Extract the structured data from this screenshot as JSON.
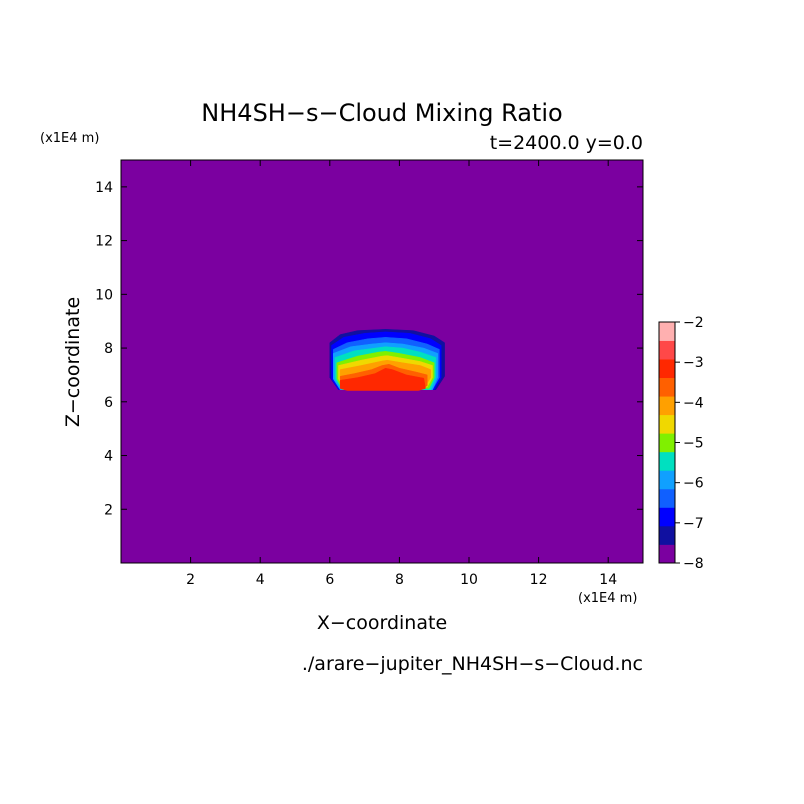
{
  "chart_data": {
    "type": "heatmap",
    "title": "NH4SH−s−Cloud Mixing Ratio",
    "subtitle": "t=2400.0 y=0.0",
    "xlabel": "X−coordinate",
    "ylabel": "Z−coordinate",
    "x_unit": "(x1E4 m)",
    "y_unit": "(x1E4 m)",
    "footer": "./arare−jupiter_NH4SH−s−Cloud.nc",
    "xlim": [
      0,
      15
    ],
    "ylim": [
      0,
      15
    ],
    "x_ticks": [
      2,
      4,
      6,
      8,
      10,
      12,
      14
    ],
    "y_ticks": [
      2,
      4,
      6,
      8,
      10,
      12,
      14
    ],
    "colorbar": {
      "min": -8,
      "max": -2,
      "ticks": [
        -2,
        -3,
        -4,
        -5,
        -6,
        -7,
        -8
      ],
      "colors": [
        "#7b00a0",
        "#1010a0",
        "#0000ff",
        "#1060ff",
        "#10a0ff",
        "#00e0c0",
        "#80f000",
        "#f0d800",
        "#ffa000",
        "#ff6000",
        "#ff2800",
        "#ff4848",
        "#ffb0b0"
      ]
    },
    "field": {
      "background_level": -8,
      "contours": [
        {
          "level": -7.5,
          "color_index": 1,
          "points": [
            [
              6.0,
              6.9
            ],
            [
              6.0,
              8.2
            ],
            [
              6.3,
              8.5
            ],
            [
              6.8,
              8.65
            ],
            [
              7.6,
              8.7
            ],
            [
              8.4,
              8.65
            ],
            [
              9.0,
              8.45
            ],
            [
              9.3,
              8.2
            ],
            [
              9.3,
              6.95
            ],
            [
              9.05,
              6.45
            ],
            [
              6.25,
              6.45
            ]
          ]
        },
        {
          "level": -7.0,
          "color_index": 2,
          "points": [
            [
              6.05,
              6.85
            ],
            [
              6.05,
              8.1
            ],
            [
              6.4,
              8.4
            ],
            [
              7.0,
              8.55
            ],
            [
              7.6,
              8.6
            ],
            [
              8.3,
              8.55
            ],
            [
              8.9,
              8.35
            ],
            [
              9.2,
              8.1
            ],
            [
              9.2,
              6.9
            ],
            [
              9.0,
              6.45
            ],
            [
              6.25,
              6.45
            ]
          ]
        },
        {
          "level": -6.5,
          "color_index": 3,
          "points": [
            [
              6.1,
              6.85
            ],
            [
              6.1,
              7.95
            ],
            [
              6.5,
              8.2
            ],
            [
              7.1,
              8.35
            ],
            [
              7.6,
              8.4
            ],
            [
              8.2,
              8.35
            ],
            [
              8.8,
              8.15
            ],
            [
              9.15,
              7.95
            ],
            [
              9.15,
              6.9
            ],
            [
              8.95,
              6.45
            ],
            [
              6.3,
              6.45
            ]
          ]
        },
        {
          "level": -6.0,
          "color_index": 4,
          "points": [
            [
              6.1,
              6.85
            ],
            [
              6.1,
              7.8
            ],
            [
              6.6,
              8.05
            ],
            [
              7.2,
              8.15
            ],
            [
              7.6,
              8.2
            ],
            [
              8.1,
              8.15
            ],
            [
              8.7,
              8.0
            ],
            [
              9.1,
              7.8
            ],
            [
              9.1,
              6.9
            ],
            [
              8.95,
              6.45
            ],
            [
              6.3,
              6.45
            ]
          ]
        },
        {
          "level": -5.5,
          "color_index": 5,
          "points": [
            [
              6.15,
              6.85
            ],
            [
              6.15,
              7.65
            ],
            [
              6.7,
              7.9
            ],
            [
              7.3,
              8.0
            ],
            [
              7.6,
              8.05
            ],
            [
              8.1,
              8.0
            ],
            [
              8.6,
              7.85
            ],
            [
              9.05,
              7.65
            ],
            [
              9.05,
              6.9
            ],
            [
              8.9,
              6.45
            ],
            [
              6.35,
              6.45
            ]
          ]
        },
        {
          "level": -5.0,
          "color_index": 6,
          "points": [
            [
              6.2,
              6.85
            ],
            [
              6.2,
              7.45
            ],
            [
              6.8,
              7.7
            ],
            [
              7.4,
              7.85
            ],
            [
              7.6,
              7.88
            ],
            [
              8.0,
              7.8
            ],
            [
              8.6,
              7.65
            ],
            [
              9.0,
              7.45
            ],
            [
              9.0,
              6.9
            ],
            [
              8.85,
              6.5
            ],
            [
              6.35,
              6.5
            ]
          ]
        },
        {
          "level": -4.5,
          "color_index": 7,
          "points": [
            [
              6.25,
              6.85
            ],
            [
              6.25,
              7.35
            ],
            [
              6.9,
              7.55
            ],
            [
              7.5,
              7.7
            ],
            [
              7.65,
              7.72
            ],
            [
              8.1,
              7.62
            ],
            [
              8.6,
              7.5
            ],
            [
              8.95,
              7.35
            ],
            [
              8.95,
              6.9
            ],
            [
              8.8,
              6.55
            ],
            [
              6.4,
              6.55
            ]
          ]
        },
        {
          "level": -4.0,
          "color_index": 8,
          "points": [
            [
              6.3,
              6.85
            ],
            [
              6.3,
              7.2
            ],
            [
              6.9,
              7.35
            ],
            [
              7.5,
              7.52
            ],
            [
              7.65,
              7.55
            ],
            [
              8.1,
              7.45
            ],
            [
              8.6,
              7.35
            ],
            [
              8.9,
              7.2
            ],
            [
              8.9,
              6.9
            ],
            [
              8.75,
              6.6
            ],
            [
              6.45,
              6.6
            ]
          ]
        },
        {
          "level": -3.5,
          "color_index": 9,
          "points": [
            [
              6.3,
              6.6
            ],
            [
              6.3,
              6.95
            ],
            [
              6.7,
              7.05
            ],
            [
              7.2,
              7.2
            ],
            [
              7.5,
              7.35
            ],
            [
              7.7,
              7.4
            ],
            [
              8.0,
              7.25
            ],
            [
              8.5,
              7.1
            ],
            [
              8.8,
              7.0
            ],
            [
              8.8,
              6.6
            ],
            [
              8.6,
              6.45
            ],
            [
              6.5,
              6.45
            ]
          ]
        },
        {
          "level": -3.0,
          "color_index": 10,
          "points": [
            [
              6.3,
              6.5
            ],
            [
              6.3,
              6.8
            ],
            [
              6.8,
              6.9
            ],
            [
              7.3,
              7.05
            ],
            [
              7.6,
              7.25
            ],
            [
              7.8,
              7.2
            ],
            [
              8.2,
              7.0
            ],
            [
              8.7,
              6.88
            ],
            [
              8.75,
              6.5
            ],
            [
              8.55,
              6.42
            ],
            [
              6.5,
              6.42
            ]
          ]
        }
      ]
    }
  }
}
